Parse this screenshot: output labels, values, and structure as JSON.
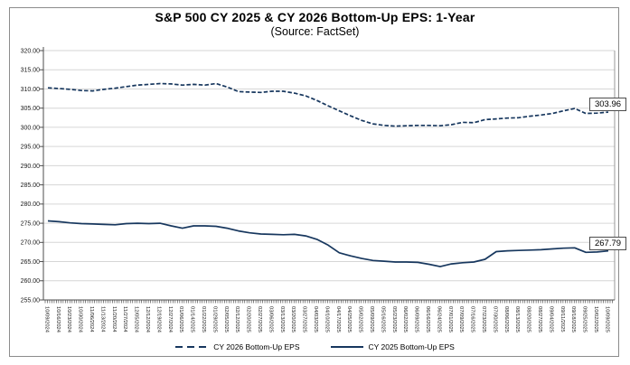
{
  "header": {
    "title": "S&P 500 CY 2025 & CY 2026 Bottom-Up EPS: 1-Year",
    "subtitle": "(Source: FactSet)"
  },
  "colors": {
    "line": "#17375E",
    "grid": "#D6D6D6",
    "axis": "#4D4D4D",
    "plot_border": "#999999",
    "background": "#FFFFFF"
  },
  "chart_data": {
    "type": "line",
    "title": "S&P 500 CY 2025 & CY 2026 Bottom-Up EPS: 1-Year",
    "subtitle": "(Source: FactSet)",
    "ylim": [
      255,
      320
    ],
    "ytick_step": 5,
    "ytick_labels": [
      "320.00",
      "315.00",
      "310.00",
      "305.00",
      "300.00",
      "295.00",
      "290.00",
      "285.00",
      "280.00",
      "275.00",
      "270.00",
      "265.00",
      "260.00",
      "255.00"
    ],
    "grid": "horizontal",
    "legend_position": "bottom",
    "categories": [
      "10/09/2024",
      "10/16/2024",
      "10/23/2024",
      "10/30/2024",
      "11/06/2024",
      "11/13/2024",
      "11/20/2024",
      "11/27/2024",
      "12/05/2024",
      "12/12/2024",
      "12/19/2024",
      "12/27/2024",
      "01/06/2025",
      "01/14/2025",
      "01/22/2025",
      "01/29/2025",
      "02/05/2025",
      "02/12/2025",
      "02/20/2025",
      "02/27/2025",
      "03/06/2025",
      "03/13/2025",
      "03/20/2025",
      "03/27/2025",
      "04/03/2025",
      "04/10/2025",
      "04/17/2025",
      "04/25/2025",
      "05/02/2025",
      "05/09/2025",
      "05/16/2025",
      "05/23/2025",
      "06/02/2025",
      "06/09/2025",
      "06/16/2025",
      "06/24/2025",
      "07/01/2025",
      "07/09/2025",
      "07/16/2025",
      "07/23/2025",
      "07/30/2025",
      "08/06/2025",
      "08/13/2025",
      "08/20/2025",
      "08/27/2025",
      "09/04/2025",
      "09/11/2025",
      "09/18/2025",
      "09/25/2025",
      "10/02/2025",
      "10/09/2025"
    ],
    "series": [
      {
        "name": "CY 2026 Bottom-Up EPS",
        "style": "dashed",
        "color": "#17375E",
        "end_label": "303.96",
        "values": [
          310.3,
          310.1,
          309.9,
          309.6,
          309.5,
          309.9,
          310.2,
          310.6,
          311.0,
          311.2,
          311.4,
          311.3,
          311.0,
          311.2,
          311.0,
          311.4,
          310.5,
          309.3,
          309.2,
          309.1,
          309.4,
          309.4,
          308.9,
          308.2,
          307.0,
          305.6,
          304.3,
          303.0,
          301.8,
          300.9,
          300.5,
          300.3,
          300.4,
          300.5,
          300.5,
          300.4,
          300.7,
          301.3,
          301.2,
          302.0,
          302.2,
          302.4,
          302.5,
          302.9,
          303.2,
          303.6,
          304.3,
          304.9,
          303.6,
          303.7,
          303.96
        ]
      },
      {
        "name": "CY 2025 Bottom-Up EPS",
        "style": "solid",
        "color": "#17375E",
        "end_label": "267.79",
        "values": [
          275.6,
          275.4,
          275.1,
          274.9,
          274.8,
          274.7,
          274.6,
          274.9,
          275.0,
          274.9,
          275.0,
          274.3,
          273.7,
          274.3,
          274.3,
          274.2,
          273.7,
          273.0,
          272.5,
          272.2,
          272.1,
          272.0,
          272.1,
          271.7,
          270.8,
          269.3,
          267.3,
          266.5,
          265.8,
          265.3,
          265.1,
          264.9,
          264.9,
          264.8,
          264.3,
          263.7,
          264.4,
          264.7,
          264.9,
          265.6,
          267.6,
          267.8,
          267.9,
          268.0,
          268.1,
          268.3,
          268.5,
          268.6,
          267.4,
          267.5,
          267.79
        ]
      }
    ]
  }
}
